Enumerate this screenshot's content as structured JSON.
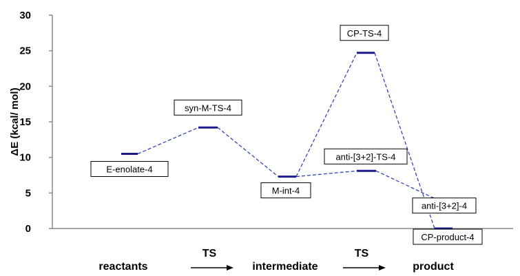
{
  "chart_data": {
    "type": "line",
    "ylabel": "ΔE (kcal/ mol)",
    "ylim": [
      0,
      30
    ],
    "yticks": [
      0,
      5,
      10,
      15,
      20,
      25,
      30
    ],
    "grid": false,
    "levels": [
      {
        "id": "E-enolate-4",
        "label": "E-enolate-4",
        "stage": 1,
        "energy": 10.5
      },
      {
        "id": "syn-M-TS-4",
        "label": "syn-M-TS-4",
        "stage": 2,
        "energy": 14.2
      },
      {
        "id": "M-int-4",
        "label": "M-int-4",
        "stage": 3,
        "energy": 7.3
      },
      {
        "id": "CP-TS-4",
        "label": "CP-TS-4",
        "stage": 4,
        "energy": 24.7
      },
      {
        "id": "anti-32-TS-4",
        "label": "anti-[3+2]-TS-4",
        "stage": 4,
        "energy": 8.1
      },
      {
        "id": "anti-32-4",
        "label": "anti-[3+2]-4",
        "stage": 5,
        "energy": 4.1
      },
      {
        "id": "CP-product-4",
        "label": "CP-product-4",
        "stage": 5,
        "energy": 0.0
      }
    ],
    "connections": [
      [
        "E-enolate-4",
        "syn-M-TS-4"
      ],
      [
        "syn-M-TS-4",
        "M-int-4"
      ],
      [
        "M-int-4",
        "CP-TS-4"
      ],
      [
        "CP-TS-4",
        "CP-product-4"
      ],
      [
        "M-int-4",
        "anti-32-TS-4"
      ],
      [
        "anti-32-TS-4",
        "anti-32-4"
      ]
    ],
    "x_axis_labels": {
      "reactants": "reactants",
      "ts1": "TS",
      "intermediate": "intermediate",
      "ts2": "TS",
      "product": "product"
    },
    "colors": {
      "level": "#1a1a8c",
      "connector": "#3344bb",
      "axis": "#888888"
    }
  }
}
